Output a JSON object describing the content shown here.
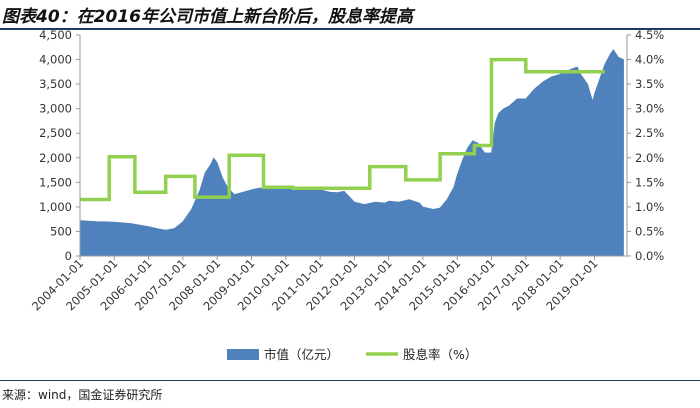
{
  "header": {
    "title": "图表40：在2016年公司市值上新台阶后，股息率提高"
  },
  "footer": {
    "source": "来源：wind，国金证券研究所"
  },
  "chart_data": {
    "type": "area+line",
    "title": "",
    "xlabel": "",
    "ylabel": "",
    "y2label": "",
    "x_tick_labels": [
      "2004-01-01",
      "2005-01-01",
      "2006-01-01",
      "2007-01-01",
      "2008-01-01",
      "2009-01-01",
      "2010-01-01",
      "2011-01-01",
      "2012-01-01",
      "2013-01-01",
      "2014-01-01",
      "2015-01-01",
      "2016-01-01",
      "2017-01-01",
      "2018-01-01",
      "2019-01-01"
    ],
    "y_left": {
      "min": 0,
      "max": 4500,
      "ticks": [
        0,
        500,
        1000,
        1500,
        2000,
        2500,
        3000,
        3500,
        4000,
        4500
      ],
      "tick_labels": [
        "0",
        "500",
        "1,000",
        "1,500",
        "2,000",
        "2,500",
        "3,000",
        "3,500",
        "4,000",
        "4,500"
      ]
    },
    "y_right": {
      "min": 0,
      "max": 4.5,
      "ticks": [
        0,
        0.5,
        1,
        1.5,
        2,
        2.5,
        3,
        3.5,
        4,
        4.5
      ],
      "tick_labels": [
        "0.0%",
        "0.5%",
        "1.0%",
        "1.5%",
        "2.0%",
        "2.5%",
        "3.0%",
        "3.5%",
        "4.0%",
        "4.5%"
      ]
    },
    "grid": false,
    "legend_position": "bottom",
    "series": [
      {
        "name": "市值（亿元）",
        "type": "area",
        "axis": "left",
        "color": "#4f81bd",
        "x": [
          2004.0,
          2004.5,
          2005.0,
          2005.5,
          2006.0,
          2006.25,
          2006.5,
          2006.75,
          2007.0,
          2007.25,
          2007.5,
          2007.65,
          2007.8,
          2007.9,
          2008.0,
          2008.15,
          2008.3,
          2008.5,
          2008.75,
          2009.0,
          2009.2,
          2009.4,
          2009.6,
          2009.8,
          2010.0,
          2010.3,
          2010.6,
          2010.8,
          2011.0,
          2011.3,
          2011.5,
          2011.7,
          2012.0,
          2012.3,
          2012.6,
          2012.9,
          2013.0,
          2013.3,
          2013.6,
          2013.9,
          2014.0,
          2014.3,
          2014.5,
          2014.7,
          2014.9,
          2015.0,
          2015.15,
          2015.3,
          2015.45,
          2015.6,
          2015.8,
          2016.0,
          2016.1,
          2016.2,
          2016.35,
          2016.5,
          2016.75,
          2017.0,
          2017.25,
          2017.5,
          2017.75,
          2018.0,
          2018.15,
          2018.3,
          2018.5,
          2018.6,
          2018.8,
          2018.95,
          2019.0,
          2019.15,
          2019.3,
          2019.45,
          2019.55,
          2019.7,
          2019.85
        ],
        "y": [
          720,
          700,
          690,
          660,
          600,
          560,
          530,
          560,
          700,
          950,
          1350,
          1700,
          1850,
          2000,
          1900,
          1600,
          1400,
          1250,
          1300,
          1350,
          1380,
          1390,
          1400,
          1420,
          1430,
          1380,
          1340,
          1360,
          1350,
          1300,
          1290,
          1320,
          1100,
          1050,
          1100,
          1080,
          1120,
          1100,
          1150,
          1080,
          1000,
          950,
          980,
          1150,
          1400,
          1650,
          1950,
          2200,
          2350,
          2300,
          2100,
          2100,
          2700,
          2900,
          3000,
          3050,
          3200,
          3200,
          3400,
          3550,
          3650,
          3700,
          3750,
          3800,
          3850,
          3700,
          3500,
          3150,
          3300,
          3600,
          3900,
          4100,
          4200,
          4050,
          4000
        ]
      },
      {
        "name": "股息率（%）",
        "type": "step",
        "axis": "right",
        "color": "#92d050",
        "x": [
          2004.0,
          2004.85,
          2005.6,
          2006.5,
          2007.35,
          2008.35,
          2009.35,
          2010.2,
          2011.2,
          2012.45,
          2013.5,
          2014.5,
          2015.5,
          2016.0,
          2017.0,
          2019.0
        ],
        "y": [
          1.15,
          2.02,
          1.3,
          1.62,
          1.2,
          2.05,
          1.4,
          1.38,
          1.38,
          1.82,
          1.55,
          2.08,
          2.25,
          4.0,
          3.75,
          3.75
        ],
        "x_end": 2019.3
      }
    ]
  }
}
